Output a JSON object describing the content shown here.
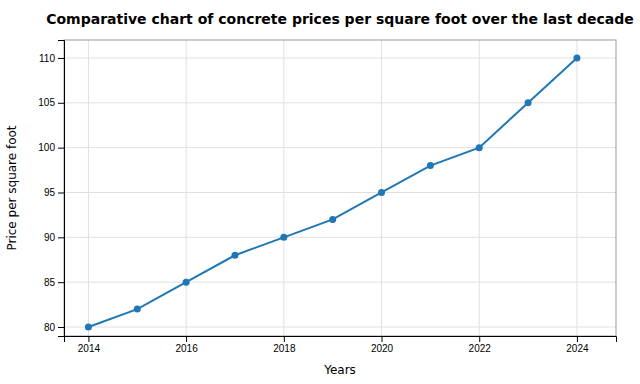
{
  "chart_data": {
    "type": "line",
    "title": "Comparative chart of concrete prices per square foot over the last decade",
    "xlabel": "Years",
    "ylabel": "Price per square foot",
    "x": [
      2014,
      2015,
      2016,
      2017,
      2018,
      2019,
      2020,
      2021,
      2022,
      2023,
      2024
    ],
    "values": [
      80,
      82,
      85,
      88,
      90,
      92,
      95,
      98,
      100,
      105,
      110
    ],
    "color": "#2077b4",
    "marker": "circle",
    "xlim": [
      2013.5,
      2024.8
    ],
    "ylim": [
      79,
      112
    ],
    "xticks": [
      2014,
      2016,
      2018,
      2020,
      2022,
      2024
    ],
    "yticks": [
      80,
      85,
      90,
      95,
      100,
      105,
      110
    ],
    "grid": true
  }
}
